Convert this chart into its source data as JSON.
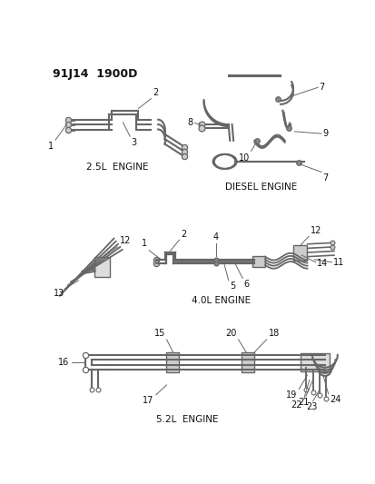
{
  "title": "91J14  1900D",
  "background_color": "#ffffff",
  "line_color": "#666666",
  "text_color": "#111111",
  "label_25L": "2.5L  ENGINE",
  "label_diesel": "DIESEL ENGINE",
  "label_40L": "4.0L ENGINE",
  "label_52L": "5.2L  ENGINE"
}
